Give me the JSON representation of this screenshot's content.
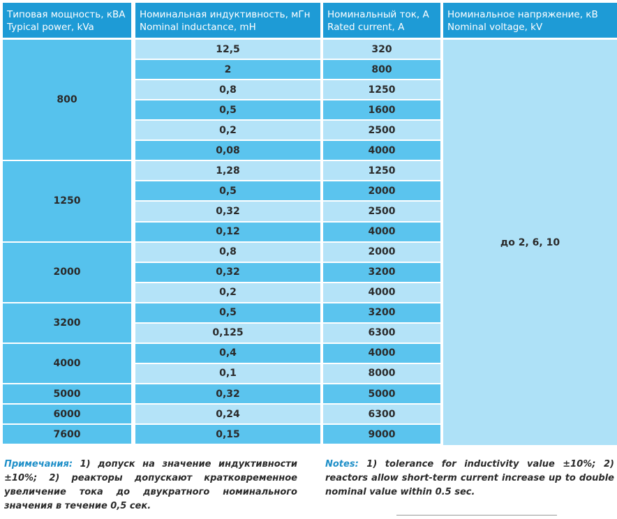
{
  "headers": [
    {
      "ru": "Типовая мощность, кВА",
      "en": "Typical power, kVa"
    },
    {
      "ru": "Номинальная индуктивность, мГн",
      "en": "Nominal inductance, mH"
    },
    {
      "ru": "Номинальный ток, А",
      "en": "Rated current, A"
    },
    {
      "ru": "Номинальное напряжение, кВ",
      "en": "Nominal voltage, kV"
    }
  ],
  "groups": [
    {
      "power": "800",
      "rows": [
        {
          "inductance": "12,5",
          "current": "320"
        },
        {
          "inductance": "2",
          "current": "800"
        },
        {
          "inductance": "0,8",
          "current": "1250"
        },
        {
          "inductance": "0,5",
          "current": "1600"
        },
        {
          "inductance": "0,2",
          "current": "2500"
        },
        {
          "inductance": "0,08",
          "current": "4000"
        }
      ]
    },
    {
      "power": "1250",
      "rows": [
        {
          "inductance": "1,28",
          "current": "1250"
        },
        {
          "inductance": "0,5",
          "current": "2000"
        },
        {
          "inductance": "0,32",
          "current": "2500"
        },
        {
          "inductance": "0,12",
          "current": "4000"
        }
      ]
    },
    {
      "power": "2000",
      "rows": [
        {
          "inductance": "0,8",
          "current": "2000"
        },
        {
          "inductance": "0,32",
          "current": "3200"
        },
        {
          "inductance": "0,2",
          "current": "4000"
        }
      ]
    },
    {
      "power": "3200",
      "rows": [
        {
          "inductance": "0,5",
          "current": "3200"
        },
        {
          "inductance": "0,125",
          "current": "6300"
        }
      ]
    },
    {
      "power": "4000",
      "rows": [
        {
          "inductance": "0,4",
          "current": "4000"
        },
        {
          "inductance": "0,1",
          "current": "8000"
        }
      ]
    },
    {
      "power": "5000",
      "rows": [
        {
          "inductance": "0,32",
          "current": "5000"
        }
      ]
    },
    {
      "power": "6000",
      "rows": [
        {
          "inductance": "0,24",
          "current": "6300"
        }
      ]
    },
    {
      "power": "7600",
      "rows": [
        {
          "inductance": "0,15",
          "current": "9000"
        }
      ]
    }
  ],
  "voltage": "до 2, 6, 10",
  "notes_ru": {
    "label": "Примечания:",
    "text": " 1) допуск на значение индуктивности ±10%; 2) реакторы допускают кратковременное увеличение тока до двукратного номинального значения в течение 0,5 сек."
  },
  "notes_en": {
    "label": "Notes:",
    "text": " 1) tolerance for inductivity value ±10%; 2) reactors allow short-term current increase up to double nominal value within 0.5 sec."
  },
  "colors": {
    "header": "#1e9bd6",
    "row_dark": "#5bc4ee",
    "row_light": "#b4e3f8",
    "note_label": "#1e8fc8"
  }
}
